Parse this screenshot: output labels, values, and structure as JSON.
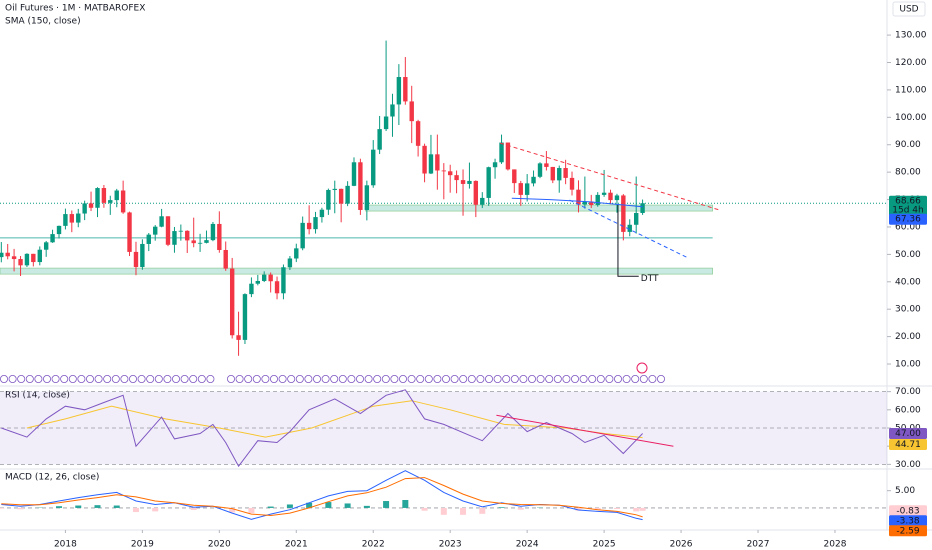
{
  "chart_data": [
    {
      "type": "candlestick",
      "title": "Oil Futures · 1M · MATBAROFEX",
      "currency": "USD",
      "countdown": "15d 4h",
      "xlim": [
        2017.15,
        2028.65
      ],
      "xticks": [
        2018,
        2019,
        2020,
        2021,
        2022,
        2023,
        2024,
        2025,
        2026,
        2027,
        2028
      ],
      "ylim": [
        4.9,
        142.8
      ],
      "yticks": [
        {
          "value": 10,
          "label": "10.00"
        },
        {
          "value": 20,
          "label": "20.00"
        },
        {
          "value": 30,
          "label": "30.00"
        },
        {
          "value": 40,
          "label": "40.00"
        },
        {
          "value": 50,
          "label": "50.00"
        },
        {
          "value": 60,
          "label": "60.00"
        },
        {
          "value": 70,
          "label": "70.00"
        },
        {
          "value": 80,
          "label": "80.00"
        },
        {
          "value": 90,
          "label": "90.00"
        },
        {
          "value": 100,
          "label": "100.00"
        },
        {
          "value": 110,
          "label": "110.00"
        },
        {
          "value": 120,
          "label": "120.00"
        },
        {
          "value": 130,
          "label": "130.00"
        }
      ],
      "up_color": "#089981",
      "down_color": "#f23645",
      "x": [
        2017.167,
        2017.25,
        2017.333,
        2017.417,
        2017.5,
        2017.583,
        2017.667,
        2017.75,
        2017.833,
        2017.917,
        2018.0,
        2018.083,
        2018.167,
        2018.25,
        2018.333,
        2018.417,
        2018.5,
        2018.583,
        2018.667,
        2018.75,
        2018.833,
        2018.917,
        2019.0,
        2019.083,
        2019.167,
        2019.25,
        2019.333,
        2019.417,
        2019.5,
        2019.583,
        2019.667,
        2019.75,
        2019.833,
        2019.917,
        2020.0,
        2020.083,
        2020.167,
        2020.25,
        2020.333,
        2020.417,
        2020.5,
        2020.583,
        2020.667,
        2020.75,
        2020.833,
        2020.917,
        2021.0,
        2021.083,
        2021.167,
        2021.25,
        2021.333,
        2021.417,
        2021.5,
        2021.583,
        2021.667,
        2021.75,
        2021.833,
        2021.917,
        2022.0,
        2022.083,
        2022.167,
        2022.25,
        2022.333,
        2022.417,
        2022.5,
        2022.583,
        2022.667,
        2022.75,
        2022.833,
        2022.917,
        2023.0,
        2023.083,
        2023.167,
        2023.25,
        2023.333,
        2023.417,
        2023.5,
        2023.583,
        2023.667,
        2023.75,
        2023.833,
        2023.917,
        2024.0,
        2024.083,
        2024.167,
        2024.25,
        2024.333,
        2024.417,
        2024.5,
        2024.583,
        2024.667,
        2024.75,
        2024.833,
        2024.917,
        2025.0,
        2025.083,
        2025.167,
        2025.25,
        2025.333,
        2025.417,
        2025.5
      ],
      "open": [
        49.0,
        50.6,
        49.3,
        48.3,
        46.0,
        50.2,
        47.2,
        51.7,
        54.4,
        57.4,
        60.4,
        64.7,
        61.6,
        64.9,
        68.6,
        67.0,
        74.2,
        68.8,
        69.8,
        73.3,
        65.3,
        50.9,
        45.4,
        53.8,
        57.2,
        60.1,
        63.9,
        53.5,
        58.5,
        58.6,
        55.1,
        54.1,
        54.2,
        55.2,
        61.1,
        51.6,
        44.8,
        20.5,
        18.8,
        35.5,
        39.3,
        40.3,
        42.6,
        40.2,
        35.8,
        45.3,
        48.5,
        52.2,
        61.5,
        59.2,
        63.6,
        66.3,
        73.5,
        73.9,
        68.5,
        75.0,
        83.6,
        66.2,
        75.2,
        88.2,
        95.7,
        100.3,
        104.7,
        114.7,
        105.8,
        98.6,
        89.6,
        79.5,
        86.5,
        80.6,
        80.3,
        78.9,
        77.1,
        75.7,
        76.8,
        68.1,
        70.6,
        81.8,
        83.6,
        90.8,
        81.0,
        76.0,
        71.7,
        75.9,
        78.3,
        83.2,
        81.9,
        77.0,
        81.5,
        77.9,
        73.6,
        68.2,
        69.3,
        68.0,
        71.7,
        72.5,
        69.8,
        71.5,
        58.2,
        60.8,
        65.1
      ],
      "high": [
        54.5,
        53.8,
        52.0,
        49.4,
        50.4,
        50.2,
        52.9,
        54.9,
        59.0,
        60.5,
        66.7,
        66.0,
        66.6,
        69.6,
        72.9,
        74.5,
        75.3,
        71.4,
        73.9,
        76.9,
        65.6,
        54.6,
        55.5,
        57.8,
        60.7,
        66.6,
        63.9,
        60.0,
        60.9,
        58.8,
        63.4,
        57.5,
        58.7,
        61.8,
        65.7,
        54.7,
        48.7,
        29.1,
        35.8,
        41.6,
        42.5,
        43.8,
        43.4,
        41.9,
        46.3,
        49.4,
        53.9,
        63.8,
        67.9,
        65.5,
        67.0,
        74.0,
        76.9,
        74.0,
        76.7,
        85.4,
        84.9,
        76.9,
        91.7,
        100.5,
        128.0,
        108.6,
        119.4,
        122.0,
        111.5,
        99.1,
        90.4,
        93.6,
        93.7,
        83.3,
        82.7,
        80.6,
        81.0,
        83.5,
        77.0,
        72.7,
        82.0,
        84.9,
        93.7,
        90.8,
        81.0,
        76.8,
        79.3,
        80.6,
        83.6,
        87.7,
        81.9,
        82.4,
        84.5,
        80.2,
        77.0,
        78.4,
        71.7,
        72.7,
        80.8,
        73.6,
        72.1,
        72.0,
        62.8,
        78.4,
        70.0
      ],
      "low": [
        47.1,
        48.2,
        43.8,
        42.1,
        45.4,
        45.6,
        46.0,
        49.1,
        54.2,
        55.8,
        59.1,
        58.1,
        59.9,
        62.5,
        65.8,
        63.6,
        67.0,
        64.4,
        67.2,
        64.8,
        49.4,
        42.4,
        44.4,
        51.2,
        55.0,
        59.9,
        53.0,
        50.6,
        55.0,
        50.5,
        52.6,
        50.9,
        54.0,
        54.8,
        50.6,
        44.0,
        19.3,
        13.0,
        17.3,
        34.4,
        38.7,
        39.9,
        36.1,
        33.6,
        33.6,
        44.3,
        47.2,
        51.5,
        57.3,
        57.6,
        61.6,
        64.4,
        65.0,
        61.7,
        67.6,
        74.9,
        64.4,
        62.4,
        74.3,
        86.6,
        95.0,
        92.9,
        97.2,
        104.6,
        90.6,
        85.7,
        76.3,
        79.3,
        73.6,
        70.1,
        72.5,
        72.3,
        64.1,
        74.0,
        63.6,
        66.9,
        67.7,
        77.6,
        83.0,
        80.6,
        72.4,
        67.7,
        69.3,
        74.8,
        77.8,
        80.6,
        76.0,
        72.5,
        75.6,
        71.5,
        65.3,
        66.7,
        66.9,
        67.4,
        71.0,
        68.3,
        65.2,
        55.1,
        56.6,
        57.6,
        64.4
      ],
      "close": [
        50.6,
        49.3,
        48.3,
        46.0,
        50.2,
        47.2,
        51.7,
        54.4,
        57.4,
        60.4,
        64.7,
        61.6,
        64.9,
        68.6,
        67.0,
        74.2,
        68.8,
        69.8,
        73.3,
        65.3,
        50.9,
        45.4,
        53.8,
        57.2,
        60.1,
        63.9,
        53.5,
        58.5,
        58.6,
        55.1,
        54.1,
        54.2,
        55.2,
        61.1,
        51.6,
        44.8,
        20.5,
        18.8,
        35.5,
        39.3,
        40.3,
        42.6,
        40.2,
        35.8,
        45.3,
        48.5,
        52.2,
        61.5,
        59.2,
        63.6,
        66.3,
        73.5,
        73.9,
        68.5,
        75.0,
        83.6,
        66.2,
        75.2,
        88.2,
        95.7,
        100.3,
        104.7,
        114.7,
        105.8,
        98.6,
        89.6,
        79.5,
        86.5,
        80.6,
        80.3,
        78.9,
        77.1,
        75.7,
        76.8,
        68.1,
        70.6,
        81.8,
        83.6,
        90.8,
        81.0,
        76.0,
        71.7,
        75.9,
        78.3,
        83.2,
        81.9,
        77.0,
        81.5,
        77.9,
        73.6,
        68.2,
        69.3,
        68.0,
        71.7,
        72.5,
        69.8,
        71.5,
        58.2,
        60.8,
        65.1,
        68.66
      ],
      "sma": {
        "name": "SMA (150, close)",
        "color": "#2962ff",
        "x": [
          2023.8,
          2024.3,
          2024.8,
          2025.5
        ],
        "values": [
          70.5,
          70.0,
          69.2,
          67.36
        ]
      },
      "zones": [
        {
          "from": 65.8,
          "to": 68.0,
          "x": [
            2021.9,
            2026.41
          ]
        },
        {
          "from": 42.8,
          "to": 45.0,
          "x": [
            2017.15,
            2026.41
          ]
        }
      ],
      "levels": [
        {
          "value": 56.0,
          "x": [
            2017.15,
            2026.41
          ]
        }
      ],
      "trendlines": [
        {
          "color": "#f23645",
          "dashed": true,
          "x": [
            2023.65,
            2026.5
          ],
          "values": [
            90.6,
            66.2
          ]
        },
        {
          "color": "#2962ff",
          "dashed": true,
          "x": [
            2024.55,
            2026.09
          ],
          "values": [
            69.8,
            48.7
          ]
        }
      ],
      "annotation": {
        "text": "DTT",
        "x": 2025.18,
        "x_end": 2025.45,
        "top": 68.0,
        "bottom": 42.0
      }
    },
    {
      "type": "line",
      "title": "RSI (14, close)",
      "xlim": [
        2017.15,
        2028.65
      ],
      "ylim": [
        28,
        72
      ],
      "yticks": [
        {
          "value": 30,
          "label": "30.00"
        },
        {
          "value": 40,
          "label": "40.00"
        },
        {
          "value": 50,
          "label": "50.00"
        },
        {
          "value": 60,
          "label": "60.00"
        },
        {
          "value": 70,
          "label": "70.00"
        }
      ],
      "band": [
        30,
        70
      ],
      "midline": 50,
      "color": "#7e57c2",
      "x": [
        2017.167,
        2017.5,
        2017.75,
        2018.0,
        2018.25,
        2018.5,
        2018.75,
        2018.917,
        2019.25,
        2019.417,
        2019.75,
        2019.917,
        2020.083,
        2020.25,
        2020.5,
        2020.75,
        2020.917,
        2021.167,
        2021.5,
        2021.833,
        2022.167,
        2022.417,
        2022.667,
        2022.917,
        2023.25,
        2023.417,
        2023.75,
        2024.0,
        2024.25,
        2024.583,
        2024.75,
        2025.0,
        2025.25,
        2025.5
      ],
      "values": [
        50,
        45,
        55,
        62,
        60,
        64,
        68,
        40,
        56,
        44,
        47,
        52,
        42,
        29,
        43,
        42,
        48,
        60,
        66,
        58,
        68,
        71,
        55,
        52,
        46,
        43,
        58,
        48,
        53,
        47,
        42,
        46,
        36,
        47
      ],
      "value_labels": [
        null,
        null,
        null,
        null,
        null,
        null,
        null,
        null,
        null,
        null,
        null,
        null,
        null,
        null,
        null,
        null,
        null,
        null,
        null,
        null,
        null,
        null,
        null,
        null,
        null,
        null,
        null,
        null,
        null,
        null,
        null,
        null,
        null,
        "47.00"
      ],
      "ma": {
        "color": "#f7c531",
        "x": [
          2017.5,
          2018.0,
          2018.6,
          2019.3,
          2020.0,
          2020.6,
          2021.2,
          2022.0,
          2022.5,
          2023.0,
          2023.7,
          2024.5,
          2025.0,
          2025.5
        ],
        "values": [
          50,
          55,
          62,
          55,
          50,
          45,
          50,
          62,
          65,
          60,
          52,
          50,
          47,
          44.71
        ]
      },
      "trendlines": [
        {
          "color": "#e91e63",
          "dashed": false,
          "x": [
            2023.6,
            2025.9
          ],
          "values": [
            57,
            40
          ]
        }
      ]
    },
    {
      "type": "combo",
      "title": "MACD (12, 26, close)",
      "xlim": [
        2017.15,
        2028.65
      ],
      "ylim": [
        -3.5,
        11
      ],
      "yticks": [
        {
          "value": 5,
          "label": "5.00"
        }
      ],
      "x": [
        2017.167,
        2017.417,
        2017.667,
        2017.917,
        2018.167,
        2018.417,
        2018.667,
        2018.917,
        2019.167,
        2019.417,
        2019.667,
        2019.917,
        2020.167,
        2020.417,
        2020.667,
        2020.917,
        2021.167,
        2021.417,
        2021.667,
        2021.917,
        2022.167,
        2022.417,
        2022.667,
        2022.917,
        2023.167,
        2023.417,
        2023.667,
        2023.917,
        2024.167,
        2024.417,
        2024.667,
        2024.917,
        2025.167,
        2025.417,
        2025.5
      ],
      "series": [
        {
          "kind": "bar",
          "color": "#26a69a",
          "down_color": "#ffcdd2",
          "values": [
            -0.2,
            -0.4,
            0.1,
            0.5,
            0.7,
            0.8,
            0.7,
            -1.2,
            -1.0,
            0.0,
            -0.6,
            0.0,
            -1.3,
            -1.5,
            0.4,
            1.0,
            1.5,
            1.7,
            1.3,
            0.6,
            2.0,
            2.3,
            -0.8,
            -2.0,
            -2.0,
            -1.7,
            0.2,
            -0.5,
            0.1,
            0.0,
            -0.8,
            -0.5,
            -0.3,
            -1.0,
            -0.83
          ]
        },
        {
          "kind": "line",
          "color": "#2962ff",
          "values": [
            1.0,
            0.5,
            1.0,
            2.0,
            3.0,
            3.8,
            4.5,
            2.0,
            1.0,
            1.5,
            0.2,
            0.5,
            -1.5,
            -3.3,
            -1.8,
            -0.5,
            1.5,
            3.5,
            4.8,
            5.0,
            8.0,
            10.8,
            8.0,
            4.5,
            2.0,
            0.3,
            1.5,
            0.5,
            1.0,
            0.8,
            -0.6,
            -1.0,
            -1.3,
            -3.0,
            -3.38
          ]
        },
        {
          "kind": "line",
          "color": "#ff6d00",
          "values": [
            1.2,
            0.9,
            0.9,
            1.5,
            2.3,
            3.0,
            3.8,
            3.2,
            2.0,
            1.5,
            0.8,
            0.5,
            -0.2,
            -1.8,
            -2.2,
            -1.5,
            0.0,
            1.8,
            3.5,
            4.4,
            6.0,
            8.5,
            8.8,
            6.5,
            4.0,
            2.0,
            1.3,
            1.0,
            0.9,
            0.8,
            0.2,
            -0.5,
            -1.0,
            -2.0,
            -2.59
          ]
        }
      ]
    }
  ]
}
